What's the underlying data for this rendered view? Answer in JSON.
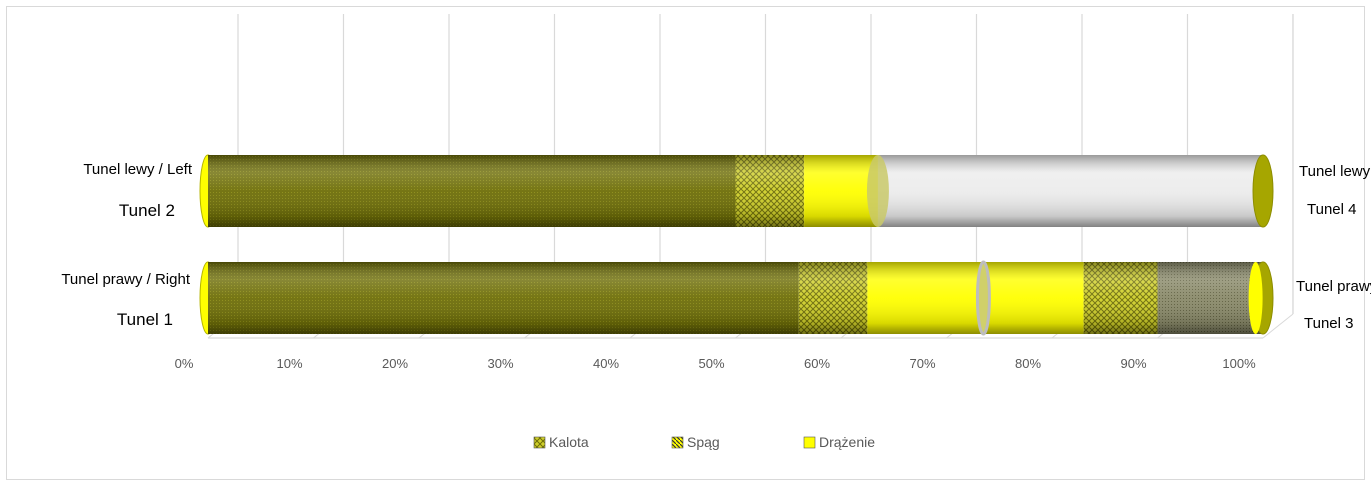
{
  "chart_data": {
    "type": "bar",
    "orientation": "horizontal",
    "stacked": "100%",
    "style": "3d-cylinder",
    "categories": [
      {
        "line1": "Tunel lewy /  Left",
        "line2": "Tunel 2",
        "right_line1": "Tunel lewy",
        "right_line2": "Tunel 4"
      },
      {
        "line1": "Tunel prawy / Right",
        "line2": "Tunel 1",
        "right_line1": "Tunel prawy",
        "right_line2": "Tunel 3"
      }
    ],
    "bars": [
      {
        "segments": [
          {
            "from": 0,
            "to": 50,
            "pattern": "dark"
          },
          {
            "from": 50,
            "to": 56.5,
            "pattern": "lattice"
          },
          {
            "from": 56.5,
            "to": 63.5,
            "pattern": "yellow"
          },
          {
            "from": 63.5,
            "to": 100,
            "pattern": "empty"
          }
        ]
      },
      {
        "segments": [
          {
            "from": 0,
            "to": 56,
            "pattern": "dark"
          },
          {
            "from": 56,
            "to": 62.5,
            "pattern": "lattice"
          },
          {
            "from": 62.5,
            "to": 73.5,
            "pattern": "yellow"
          },
          {
            "from": 73.5,
            "to": 83,
            "pattern": "yellow"
          },
          {
            "from": 83,
            "to": 90,
            "pattern": "lattice"
          },
          {
            "from": 90,
            "to": 100,
            "pattern": "gray"
          }
        ]
      }
    ],
    "xticks": [
      "0%",
      "10%",
      "20%",
      "30%",
      "40%",
      "50%",
      "60%",
      "70%",
      "80%",
      "90%",
      "100%"
    ],
    "xlim": [
      0,
      100
    ],
    "grid": true,
    "legend_position": "bottom",
    "legend": [
      {
        "label": "Kalota",
        "pattern": "lattice"
      },
      {
        "label": "Spąg",
        "pattern": "stripe"
      },
      {
        "label": "Drążenie",
        "pattern": "yellow"
      }
    ],
    "colors": {
      "dark": "#6e6e08",
      "lattice": "#b3b31a",
      "yellow": "#ffff00",
      "gray": "#8f8f72",
      "empty": "#e9e9e9",
      "cap": "#a6a600",
      "grid": "#d9d9d9"
    }
  }
}
